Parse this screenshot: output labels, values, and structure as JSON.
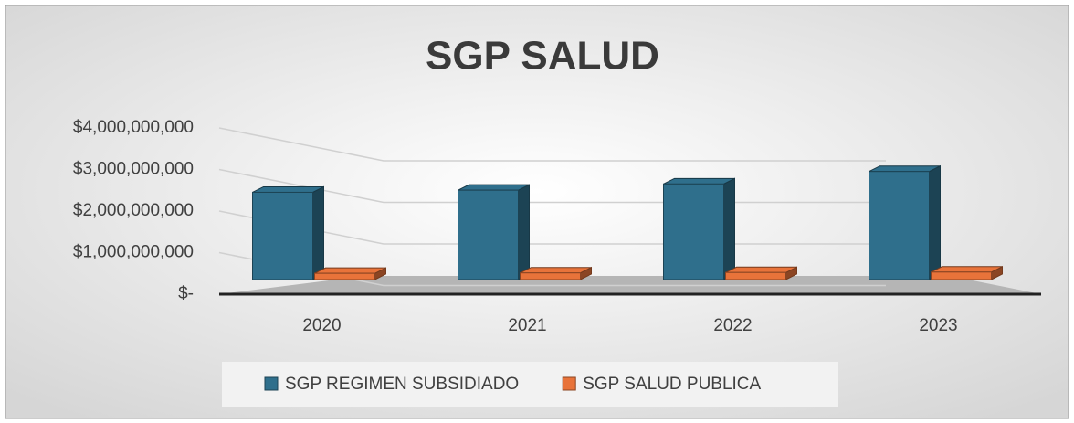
{
  "chart_data": {
    "type": "bar3d",
    "title": "SGP SALUD",
    "categories": [
      "2020",
      "2021",
      "2022",
      "2023"
    ],
    "series": [
      {
        "name": "SGP REGIMEN SUBSIDIADO",
        "color": "#2f6f8c",
        "values": [
          2100000000,
          2150000000,
          2300000000,
          2600000000
        ]
      },
      {
        "name": "SGP SALUD PUBLICA",
        "color": "#e8733a",
        "values": [
          150000000,
          160000000,
          170000000,
          180000000
        ]
      }
    ],
    "ylim": [
      0,
      4000000000
    ],
    "yticks": [
      {
        "value": 0,
        "label": "$-"
      },
      {
        "value": 1000000000,
        "label": "$1,000,000,000"
      },
      {
        "value": 2000000000,
        "label": "$2,000,000,000"
      },
      {
        "value": 3000000000,
        "label": "$3,000,000,000"
      },
      {
        "value": 4000000000,
        "label": "$4,000,000,000"
      }
    ],
    "grid": true,
    "legend": "bottom"
  }
}
